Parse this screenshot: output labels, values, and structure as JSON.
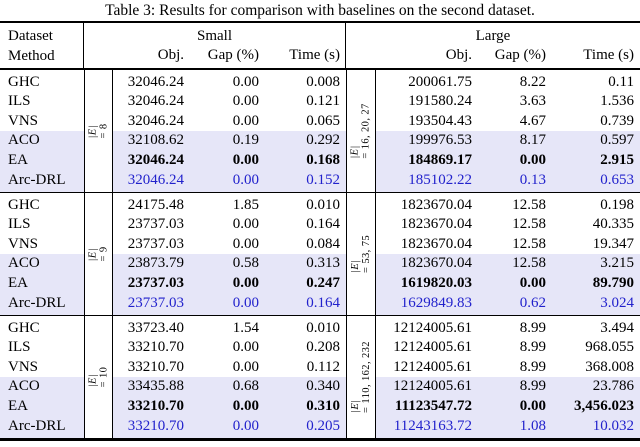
{
  "title": "Table 3: Results for comparison with baselines on the second dataset.",
  "header": {
    "dataset_label": "Dataset",
    "method_label": "Method",
    "small_group": "Small",
    "large_group": "Large",
    "subcolumns": [
      "Obj.",
      "Gap (%)",
      "Time (s)"
    ]
  },
  "colors": {
    "highlight_row_bg": "#e6e6f8",
    "accent_blue": "#2222cc"
  },
  "blocks": [
    {
      "small_edge_label": {
        "sym": "|E|",
        "rest": " = 8"
      },
      "large_edge_label": {
        "sym": "|E|",
        "rest": " = 16, 20, 27"
      },
      "rows": [
        {
          "method": "GHC",
          "values": [
            "32046.24",
            "0.00",
            "0.008",
            "200061.75",
            "8.22",
            "0.11"
          ],
          "emphasis": "none",
          "highlight": false
        },
        {
          "method": "ILS",
          "values": [
            "32046.24",
            "0.00",
            "0.121",
            "191580.24",
            "3.63",
            "1.536"
          ],
          "emphasis": "none",
          "highlight": false
        },
        {
          "method": "VNS",
          "values": [
            "32046.24",
            "0.00",
            "0.065",
            "193504.43",
            "4.67",
            "0.739"
          ],
          "emphasis": "none",
          "highlight": false
        },
        {
          "method": "ACO",
          "values": [
            "32108.62",
            "0.19",
            "0.292",
            "199976.53",
            "8.17",
            "0.597"
          ],
          "emphasis": "none",
          "highlight": true
        },
        {
          "method": "EA",
          "values": [
            "32046.24",
            "0.00",
            "0.168",
            "184869.17",
            "0.00",
            "2.915"
          ],
          "emphasis": "bold",
          "highlight": true
        },
        {
          "method": "Arc-DRL",
          "values": [
            "32046.24",
            "0.00",
            "0.152",
            "185102.22",
            "0.13",
            "0.653"
          ],
          "emphasis": "blue",
          "highlight": true
        }
      ]
    },
    {
      "small_edge_label": {
        "sym": "|E|",
        "rest": " = 9"
      },
      "large_edge_label": {
        "sym": "|E|",
        "rest": " = 53, 75"
      },
      "rows": [
        {
          "method": "GHC",
          "values": [
            "24175.48",
            "1.85",
            "0.010",
            "1823670.04",
            "12.58",
            "0.198"
          ],
          "emphasis": "none",
          "highlight": false
        },
        {
          "method": "ILS",
          "values": [
            "23737.03",
            "0.00",
            "0.164",
            "1823670.04",
            "12.58",
            "40.335"
          ],
          "emphasis": "none",
          "highlight": false
        },
        {
          "method": "VNS",
          "values": [
            "23737.03",
            "0.00",
            "0.084",
            "1823670.04",
            "12.58",
            "19.347"
          ],
          "emphasis": "none",
          "highlight": false
        },
        {
          "method": "ACO",
          "values": [
            "23873.79",
            "0.58",
            "0.313",
            "1823670.04",
            "12.58",
            "3.215"
          ],
          "emphasis": "none",
          "highlight": true
        },
        {
          "method": "EA",
          "values": [
            "23737.03",
            "0.00",
            "0.247",
            "1619820.03",
            "0.00",
            "89.790"
          ],
          "emphasis": "bold",
          "highlight": true
        },
        {
          "method": "Arc-DRL",
          "values": [
            "23737.03",
            "0.00",
            "0.164",
            "1629849.83",
            "0.62",
            "3.024"
          ],
          "emphasis": "blue",
          "highlight": true
        }
      ]
    },
    {
      "small_edge_label": {
        "sym": "|E|",
        "rest": " = 10"
      },
      "large_edge_label": {
        "sym": "|E|",
        "rest": " = 110, 162, 232"
      },
      "rows": [
        {
          "method": "GHC",
          "values": [
            "33723.40",
            "1.54",
            "0.010",
            "12124005.61",
            "8.99",
            "3.494"
          ],
          "emphasis": "none",
          "highlight": false
        },
        {
          "method": "ILS",
          "values": [
            "33210.70",
            "0.00",
            "0.208",
            "12124005.61",
            "8.99",
            "968.055"
          ],
          "emphasis": "none",
          "highlight": false
        },
        {
          "method": "VNS",
          "values": [
            "33210.70",
            "0.00",
            "0.112",
            "12124005.61",
            "8.99",
            "368.008"
          ],
          "emphasis": "none",
          "highlight": false
        },
        {
          "method": "ACO",
          "values": [
            "33435.88",
            "0.68",
            "0.340",
            "12124005.61",
            "8.99",
            "23.786"
          ],
          "emphasis": "none",
          "highlight": true
        },
        {
          "method": "EA",
          "values": [
            "33210.70",
            "0.00",
            "0.310",
            "11123547.72",
            "0.00",
            "3,456.023"
          ],
          "emphasis": "bold",
          "highlight": true
        },
        {
          "method": "Arc-DRL",
          "values": [
            "33210.70",
            "0.00",
            "0.205",
            "11243163.72",
            "1.08",
            "10.032"
          ],
          "emphasis": "blue",
          "highlight": true
        }
      ]
    }
  ]
}
